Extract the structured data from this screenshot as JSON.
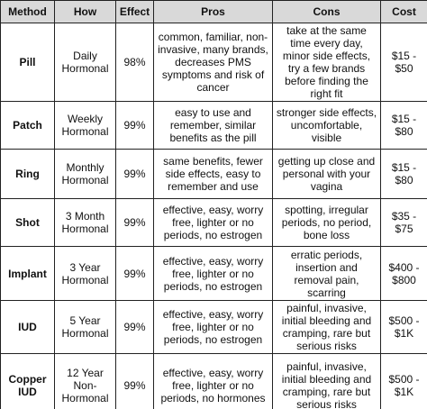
{
  "table": {
    "header": [
      "Method",
      "How",
      "Effect",
      "Pros",
      "Cons",
      "Cost"
    ],
    "rows": [
      [
        "Pill",
        "Daily Hormonal",
        "98%",
        "common, familiar, non-invasive, many brands, decreases PMS symptoms and risk of cancer",
        "take at the same time every day, minor side effects, try a few brands before finding the right fit",
        "$15 - $50"
      ],
      [
        "Patch",
        "Weekly Hormonal",
        "99%",
        "easy to use and remember, similar benefits as the pill",
        "stronger side effects, uncomfortable, visible",
        "$15 - $80"
      ],
      [
        "Ring",
        "Monthly Hormonal",
        "99%",
        "same benefits, fewer side effects, easy to remember and use",
        "getting up close and personal with your vagina",
        "$15 - $80"
      ],
      [
        "Shot",
        "3 Month Hormonal",
        "99%",
        "effective, easy, worry free, lighter or no periods, no estrogen",
        "spotting, irregular periods, no period, bone loss",
        "$35 - $75"
      ],
      [
        "Implant",
        "3 Year Hormonal",
        "99%",
        "effective, easy, worry free, lighter or no periods, no estrogen",
        "erratic periods, insertion and removal pain, scarring",
        "$400 - $800"
      ],
      [
        "IUD",
        "5 Year Hormonal",
        "99%",
        "effective, easy, worry free, lighter or no periods, no estrogen",
        "painful, invasive, initial bleeding and cramping, rare but serious risks",
        "$500 - $1K"
      ],
      [
        "Copper IUD",
        "12 Year Non-Hormonal",
        "99%",
        "effective, easy, worry free, lighter or no periods, no hormones",
        "painful, invasive, initial bleeding and cramping, rare but serious risks",
        "$500 - $1K"
      ]
    ]
  }
}
